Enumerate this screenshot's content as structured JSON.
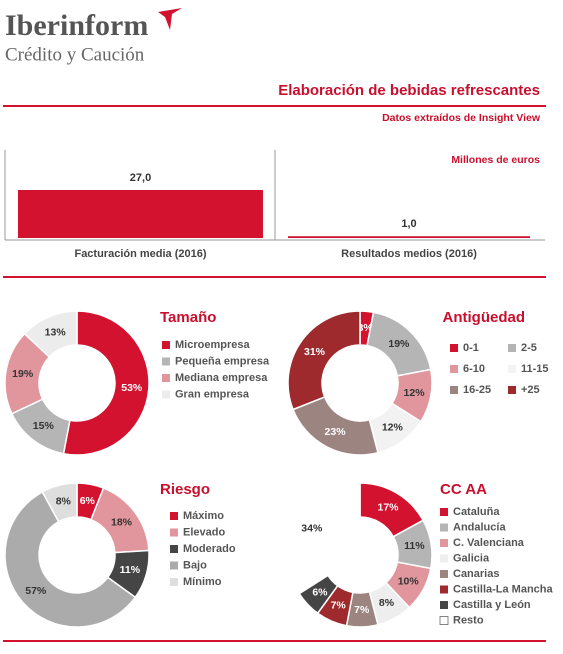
{
  "header": {
    "brand": "Iberinform",
    "tagline": "Crédito y Caución",
    "title": "Elaboración de bebidas refrescantes",
    "subtitle": "Datos extraídos de Insight View"
  },
  "chart_data": [
    {
      "type": "bar",
      "annotation": "Millones de euros",
      "categories": [
        "Facturación media (2016)",
        "Resultados medios (2016)"
      ],
      "values": [
        27.0,
        1.0
      ],
      "value_labels": [
        "27,0",
        "1,0"
      ],
      "color": "#d2122e"
    },
    {
      "type": "donut",
      "title": "Tamaño",
      "categories": [
        "Microempresa",
        "Pequeña empresa",
        "Mediana empresa",
        "Gran empresa"
      ],
      "values": [
        53,
        15,
        19,
        13
      ],
      "value_labels": [
        "53%",
        "15%",
        "19%",
        "13%"
      ],
      "colors": [
        "#d2122e",
        "#b5b5b5",
        "#e0969c",
        "#ececec"
      ],
      "legend_columns": 1
    },
    {
      "type": "donut",
      "title": "Antigüedad",
      "categories": [
        "0-1",
        "2-5",
        "6-10",
        "11-15",
        "16-25",
        "+25"
      ],
      "values": [
        3,
        19,
        12,
        12,
        23,
        31
      ],
      "value_labels": [
        "3%",
        "19%",
        "12%",
        "12%",
        "23%",
        "31%"
      ],
      "colors": [
        "#d2122e",
        "#b5b5b5",
        "#e0969c",
        "#f2f2f2",
        "#9c8580",
        "#9e2a2d"
      ],
      "legend_columns": 2
    },
    {
      "type": "donut",
      "title": "Riesgo",
      "categories": [
        "Máximo",
        "Elevado",
        "Moderado",
        "Bajo",
        "Mínimo"
      ],
      "values": [
        6,
        18,
        11,
        57,
        8
      ],
      "value_labels": [
        "6%",
        "18%",
        "11%",
        "57%",
        "8%"
      ],
      "colors": [
        "#d2122e",
        "#e0969c",
        "#454545",
        "#ababab",
        "#dedede"
      ],
      "legend_columns": 1
    },
    {
      "type": "donut",
      "title": "CC AA",
      "categories": [
        "Cataluña",
        "Andalucía",
        "C. Valenciana",
        "Galicia",
        "Canarias",
        "Castilla-La Mancha",
        "Castilla y León",
        "Resto"
      ],
      "values": [
        17,
        11,
        10,
        8,
        7,
        7,
        6,
        34
      ],
      "value_labels": [
        "17%",
        "11%",
        "10%",
        "8%",
        "7%",
        "7%",
        "6%",
        "34%"
      ],
      "colors": [
        "#d2122e",
        "#b5b5b5",
        "#e0969c",
        "#eeeeee",
        "#9c8580",
        "#9e2a2d",
        "#454545",
        "#ffffff"
      ],
      "legend_columns": 1
    }
  ]
}
